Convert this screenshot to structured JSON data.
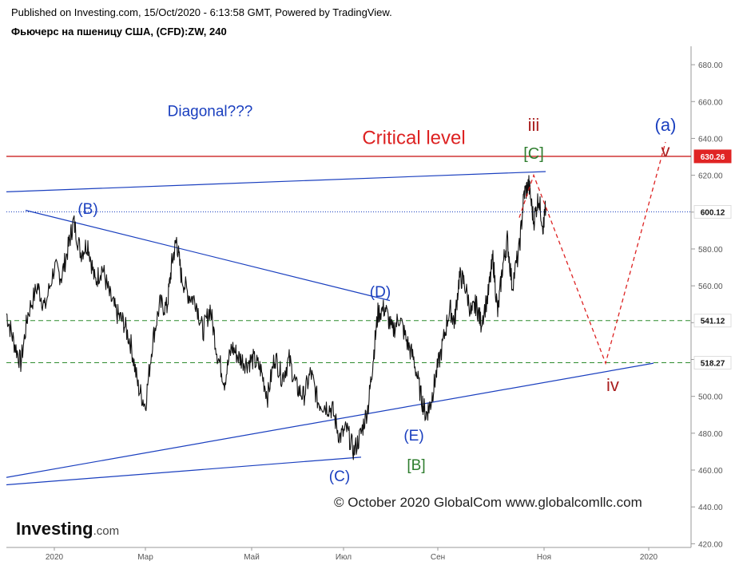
{
  "header": {
    "published_line": "Published on Investing.com, 15/Oct/2020 - 6:13:58 GMT, Powered by TradingView.",
    "instrument_line": "Фьючерс на пшеницу США, (CFD):ZW, 240"
  },
  "watermark": {
    "logo_text": "Investing",
    "logo_suffix": ".com",
    "copyright": "© October 2020 GlobalCom www.globalcomllc.com"
  },
  "chart_data": {
    "type": "line",
    "title": "Фьючерс на пшеницу США, (CFD):ZW, 240",
    "ylim": [
      418,
      690
    ],
    "y_ticks": [
      "420.00",
      "440.00",
      "460.00",
      "480.00",
      "500.00",
      "520.00",
      "540.00",
      "560.00",
      "580.00",
      "600.00",
      "620.00",
      "640.00",
      "660.00",
      "680.00"
    ],
    "x_ticks": [
      "2020",
      "Мар",
      "Май",
      "Июл",
      "Сен",
      "Ноя",
      "2020"
    ],
    "price_series": {
      "points": [
        [
          0.0,
          545
        ],
        [
          0.03,
          530
        ],
        [
          0.06,
          518
        ],
        [
          0.09,
          545
        ],
        [
          0.13,
          560
        ],
        [
          0.16,
          548
        ],
        [
          0.2,
          570
        ],
        [
          0.23,
          565
        ],
        [
          0.26,
          582
        ],
        [
          0.28,
          595
        ],
        [
          0.31,
          578
        ],
        [
          0.34,
          583
        ],
        [
          0.37,
          562
        ],
        [
          0.4,
          570
        ],
        [
          0.43,
          555
        ],
        [
          0.46,
          545
        ],
        [
          0.49,
          540
        ],
        [
          0.52,
          528
        ],
        [
          0.55,
          505
        ],
        [
          0.58,
          495
        ],
        [
          0.61,
          530
        ],
        [
          0.64,
          550
        ],
        [
          0.67,
          548
        ],
        [
          0.69,
          572
        ],
        [
          0.71,
          585
        ],
        [
          0.73,
          565
        ],
        [
          0.76,
          555
        ],
        [
          0.79,
          552
        ],
        [
          0.82,
          535
        ],
        [
          0.85,
          548
        ],
        [
          0.88,
          523
        ],
        [
          0.91,
          508
        ],
        [
          0.94,
          527
        ],
        [
          0.97,
          521
        ],
        [
          1.0,
          518
        ],
        [
          1.03,
          520
        ],
        [
          1.06,
          515
        ],
        [
          1.09,
          500
        ],
        [
          1.12,
          522
        ],
        [
          1.15,
          510
        ],
        [
          1.18,
          520
        ],
        [
          1.21,
          505
        ],
        [
          1.24,
          500
        ],
        [
          1.27,
          513
        ],
        [
          1.3,
          497
        ],
        [
          1.33,
          495
        ],
        [
          1.36,
          493
        ],
        [
          1.39,
          478
        ],
        [
          1.42,
          482
        ],
        [
          1.45,
          470
        ],
        [
          1.48,
          480
        ],
        [
          1.51,
          495
        ],
        [
          1.53,
          520
        ],
        [
          1.55,
          545
        ],
        [
          1.58,
          548
        ],
        [
          1.61,
          535
        ],
        [
          1.64,
          543
        ],
        [
          1.67,
          530
        ],
        [
          1.7,
          520
        ],
        [
          1.73,
          500
        ],
        [
          1.75,
          490
        ],
        [
          1.77,
          496
        ],
        [
          1.79,
          510
        ],
        [
          1.82,
          528
        ],
        [
          1.85,
          548
        ],
        [
          1.87,
          540
        ],
        [
          1.89,
          565
        ],
        [
          1.91,
          562
        ],
        [
          1.94,
          545
        ],
        [
          1.96,
          550
        ],
        [
          1.98,
          540
        ],
        [
          2.01,
          555
        ],
        [
          2.03,
          575
        ],
        [
          2.05,
          545
        ],
        [
          2.07,
          570
        ],
        [
          2.09,
          585
        ],
        [
          2.11,
          560
        ],
        [
          2.14,
          580
        ],
        [
          2.16,
          610
        ],
        [
          2.18,
          615
        ],
        [
          2.2,
          595
        ],
        [
          2.22,
          608
        ],
        [
          2.24,
          592
        ],
        [
          2.25,
          602
        ]
      ]
    },
    "reference_lines": [
      {
        "label": "Critical level",
        "value": 630.26,
        "value_label": "630.26",
        "color": "#cc2222",
        "style": "solid"
      },
      {
        "value": 600.12,
        "value_label": "600.12",
        "color": "#1a3fbf",
        "style": "dotted"
      },
      {
        "value": 541.12,
        "value_label": "541.12",
        "color": "#2e8b2e",
        "style": "dashed"
      },
      {
        "value": 518.27,
        "value_label": "518.27",
        "color": "#2e8b2e",
        "style": "dashed"
      }
    ],
    "trendlines": [
      {
        "from": [
          0.0,
          611
        ],
        "to": [
          2.25,
          622
        ],
        "color": "#1a3fbf"
      },
      {
        "from": [
          0.08,
          601
        ],
        "to": [
          1.6,
          552
        ],
        "color": "#1a3fbf"
      },
      {
        "from": [
          0.0,
          456
        ],
        "to": [
          2.7,
          518
        ],
        "color": "#1a3fbf"
      },
      {
        "from": [
          0.0,
          452
        ],
        "to": [
          1.48,
          467
        ],
        "color": "#1a3fbf"
      }
    ],
    "projection": {
      "color": "#dd2222",
      "points": [
        [
          2.14,
          597
        ],
        [
          2.2,
          620
        ],
        [
          2.5,
          518
        ],
        [
          2.75,
          638
        ]
      ]
    },
    "annotations": [
      {
        "text": "Diagonal???",
        "x": 0.85,
        "y": 652,
        "color": "#1a3fbf",
        "size": 19
      },
      {
        "text": "Critical level",
        "x": 1.7,
        "y": 637,
        "color": "#dd2222",
        "size": 24
      },
      {
        "text": "(B)",
        "x": 0.34,
        "y": 599,
        "color": "#1a3fbf",
        "size": 19
      },
      {
        "text": "(D)",
        "x": 1.56,
        "y": 554,
        "color": "#1a3fbf",
        "size": 19
      },
      {
        "text": "(C)",
        "x": 1.39,
        "y": 454,
        "color": "#1a3fbf",
        "size": 19
      },
      {
        "text": "(E)",
        "x": 1.7,
        "y": 476,
        "color": "#1a3fbf",
        "size": 19
      },
      {
        "text": "[B]",
        "x": 1.71,
        "y": 460,
        "color": "#2e7d2e",
        "size": 19
      },
      {
        "text": "iii",
        "x": 2.2,
        "y": 644,
        "color": "#aa1f1f",
        "size": 22
      },
      {
        "text": "[C]",
        "x": 2.2,
        "y": 629,
        "color": "#2e7d2e",
        "size": 20
      },
      {
        "text": "(a)",
        "x": 2.75,
        "y": 644,
        "color": "#1a3fbf",
        "size": 22
      },
      {
        "text": "v",
        "x": 2.75,
        "y": 630,
        "color": "#aa1f1f",
        "size": 22
      },
      {
        "text": "iv",
        "x": 2.53,
        "y": 503,
        "color": "#aa1f1f",
        "size": 22
      }
    ],
    "grid": false,
    "legend": "none"
  }
}
